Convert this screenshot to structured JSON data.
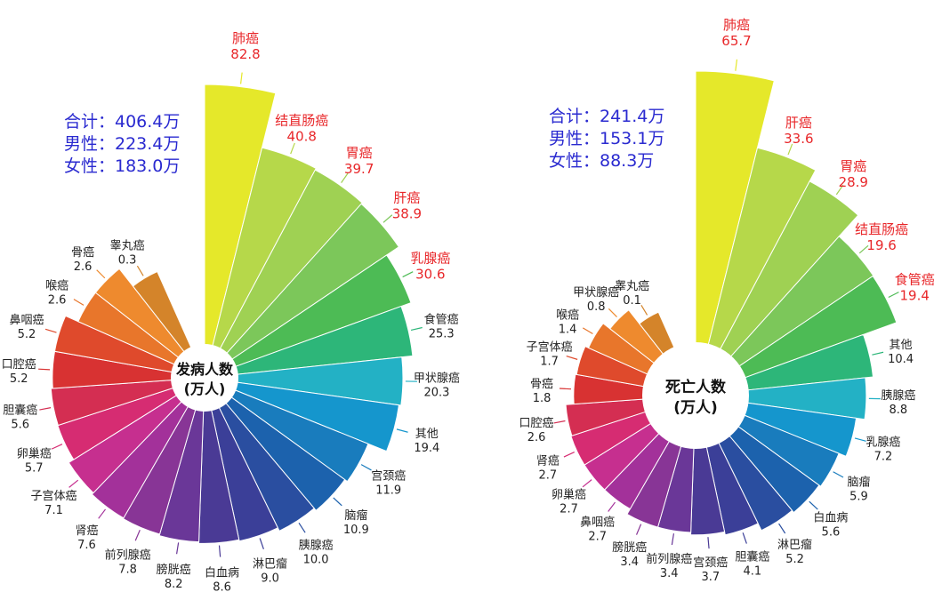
{
  "chart_data": [
    {
      "type": "polar-bar",
      "center_label": [
        "发病人数",
        "(万人)"
      ],
      "totals": [
        {
          "label": "合计：",
          "value": "406.4万"
        },
        {
          "label": "男性：",
          "value": "223.4万"
        },
        {
          "label": "女性：",
          "value": "183.0万"
        }
      ],
      "categories": [
        "肺癌",
        "结直肠癌",
        "胃癌",
        "肝癌",
        "乳腺癌",
        "食管癌",
        "甲状腺癌",
        "其他",
        "宫颈癌",
        "脑瘤",
        "胰腺癌",
        "淋巴瘤",
        "白血病",
        "膀胱癌",
        "前列腺癌",
        "肾癌",
        "子宫体癌",
        "卵巢癌",
        "胆囊癌",
        "口腔癌",
        "鼻咽癌",
        "喉癌",
        "骨癌",
        "睾丸癌"
      ],
      "values": [
        82.8,
        40.8,
        39.7,
        38.9,
        30.6,
        25.3,
        20.3,
        19.4,
        11.9,
        10.9,
        10.0,
        9.0,
        8.6,
        8.2,
        7.8,
        7.6,
        7.1,
        5.7,
        5.6,
        5.2,
        5.2,
        2.6,
        2.6,
        0.3
      ],
      "colors": [
        "#e5e82a",
        "#b6d84a",
        "#9fd153",
        "#7cc75a",
        "#4dbb55",
        "#2db679",
        "#23b1c5",
        "#1596cd",
        "#197cbd",
        "#1c62ad",
        "#2a4ea0",
        "#3b3f98",
        "#4a3a95",
        "#6a3798",
        "#883596",
        "#a3319a",
        "#c62f8f",
        "#d62c72",
        "#d42e52",
        "#d83232",
        "#df4a2c",
        "#e8762b",
        "#ee8a2e",
        "#d4842a"
      ],
      "highlight": [
        "肺癌",
        "结直肠癌",
        "胃癌",
        "肝癌",
        "乳腺癌"
      ]
    },
    {
      "type": "polar-bar",
      "center_label": [
        "死亡人数",
        "(万人)"
      ],
      "totals": [
        {
          "label": "合计：",
          "value": "241.4万"
        },
        {
          "label": "男性：",
          "value": "153.1万"
        },
        {
          "label": "女性：",
          "value": "88.3万"
        }
      ],
      "categories": [
        "肺癌",
        "肝癌",
        "胃癌",
        "结直肠癌",
        "食管癌",
        "其他",
        "胰腺癌",
        "乳腺癌",
        "脑瘤",
        "白血病",
        "淋巴瘤",
        "胆囊癌",
        "宫颈癌",
        "前列腺癌",
        "膀胱癌",
        "鼻咽癌",
        "卵巢癌",
        "肾癌",
        "口腔癌",
        "骨癌",
        "子宫体癌",
        "喉癌",
        "甲状腺癌",
        "睾丸癌"
      ],
      "values": [
        65.7,
        33.6,
        28.9,
        19.6,
        19.4,
        10.4,
        8.8,
        7.2,
        5.9,
        5.6,
        5.2,
        4.1,
        3.7,
        3.4,
        3.4,
        2.7,
        2.7,
        2.7,
        2.6,
        1.8,
        1.7,
        1.4,
        0.8,
        0.1
      ],
      "colors": [
        "#e5e82a",
        "#b6d84a",
        "#9fd153",
        "#7cc75a",
        "#4dbb55",
        "#2db679",
        "#23b1c5",
        "#1596cd",
        "#197cbd",
        "#1c62ad",
        "#2a4ea0",
        "#3b3f98",
        "#4a3a95",
        "#6a3798",
        "#883596",
        "#a3319a",
        "#c62f8f",
        "#d62c72",
        "#d42e52",
        "#d83232",
        "#df4a2c",
        "#e8762b",
        "#ee8a2e",
        "#d4842a"
      ],
      "highlight": [
        "肺癌",
        "肝癌",
        "胃癌",
        "结直肠癌",
        "食管癌"
      ]
    }
  ]
}
